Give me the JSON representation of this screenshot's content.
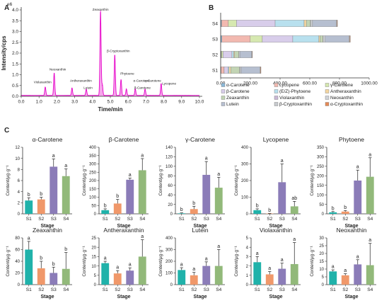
{
  "panels": {
    "a": "A",
    "b": "B",
    "c": "C"
  },
  "chart_data": [
    {
      "type": "line",
      "panel": "A",
      "xlabel": "Time/min",
      "ylabel": "Intensity/cps",
      "xlim": [
        0.0,
        10.0
      ],
      "ylim": [
        0.0,
        4.0
      ],
      "y_unit": "e6",
      "xticks": [
        "0.0",
        "1.0",
        "2.0",
        "3.0",
        "4.0",
        "5.0",
        "6.0",
        "7.0",
        "8.0",
        "9.0",
        "10.0"
      ],
      "yticks": [
        "0.0",
        "0.5",
        "1.0",
        "1.5",
        "2.0",
        "2.5",
        "3.0",
        "3.5",
        "4.0"
      ],
      "y_exponent_label": "e6",
      "color": "#e600c8",
      "peaks": [
        {
          "x": 1.35,
          "y": 0.4,
          "label": "Violaxanthin"
        },
        {
          "x": 1.85,
          "y": 1.05,
          "label": "Neoxanthin"
        },
        {
          "x": 2.85,
          "y": 0.35,
          "label": "Antheraxanthin"
        },
        {
          "x": 3.65,
          "y": 0.3,
          "label": "Lutein"
        },
        {
          "x": 4.45,
          "y": 3.95,
          "label": "Zeaxanthin"
        },
        {
          "x": 4.55,
          "y": 0.5,
          "label": ""
        },
        {
          "x": 5.25,
          "y": 1.9,
          "label": "β-Cryptoxanthin"
        },
        {
          "x": 5.6,
          "y": 0.75,
          "label": "Phytoene"
        },
        {
          "x": 5.9,
          "y": 0.3,
          "label": "α-Carotene"
        },
        {
          "x": 6.4,
          "y": 0.3,
          "label": "β-Carotene"
        },
        {
          "x": 6.95,
          "y": 0.3,
          "label": "γ-Carotene"
        },
        {
          "x": 7.85,
          "y": 0.55,
          "label": "Lycopene"
        }
      ],
      "peak_labels": [
        {
          "text": "Violaxanthin",
          "x": 1.2,
          "y": 0.55
        },
        {
          "text": "Neoxanthin",
          "x": 2.05,
          "y": 1.15
        },
        {
          "text": "Antheraxanthin",
          "x": 3.35,
          "y": 0.62
        },
        {
          "text": "Lutein",
          "x": 3.75,
          "y": 0.3
        },
        {
          "text": "Zeaxanthin",
          "x": 4.45,
          "y": 3.92
        },
        {
          "text": "β-Cryptoxanthin",
          "x": 5.45,
          "y": 2.0
        },
        {
          "text": "Phytoene",
          "x": 5.95,
          "y": 0.95
        },
        {
          "text": "α-Carotene",
          "x": 6.75,
          "y": 0.62
        },
        {
          "text": "β-Carotene",
          "x": 6.8,
          "y": 0.3
        },
        {
          "text": "γ-Carotene",
          "x": 7.4,
          "y": 0.62
        },
        {
          "text": "Lycopene",
          "x": 8.3,
          "y": 0.5
        }
      ]
    },
    {
      "type": "bar",
      "panel": "B",
      "orientation": "horizontal",
      "stacked": true,
      "categories": [
        "S1",
        "S2",
        "S3",
        "S4"
      ],
      "xlim": [
        0,
        1000
      ],
      "xticks": [
        "0.00",
        "200.00",
        "400.00",
        "600.00",
        "800.00",
        "1000.00"
      ],
      "series": [
        {
          "name": "α-Carotene",
          "color": "#8ab8d8",
          "values": [
            2.5,
            4.0,
            8.5,
            6.8
          ]
        },
        {
          "name": "Lycopene",
          "color": "#f2b9b0",
          "values": [
            20,
            2,
            190,
            45
          ]
        },
        {
          "name": "γ-Carotene",
          "color": "#d6e8b0",
          "values": [
            1,
            10,
            82,
            55
          ]
        },
        {
          "name": "β-Carotene",
          "color": "#d8cdea",
          "values": [
            25,
            60,
            205,
            260
          ]
        },
        {
          "name": "(E/Z)-Phytoene",
          "color": "#b8e0ee",
          "values": [
            8,
            12,
            175,
            195
          ]
        },
        {
          "name": "Antheraxanthin",
          "color": "#f4d6a0",
          "values": [
            11,
            6,
            8,
            15
          ]
        },
        {
          "name": "Zeaxanthin",
          "color": "#c2d4b4",
          "values": [
            60,
            28,
            20,
            27
          ]
        },
        {
          "name": "Violaxanthin",
          "color": "#c9b8d4",
          "values": [
            2.4,
            1.1,
            1.7,
            2.2
          ]
        },
        {
          "name": "Neoxanthin",
          "color": "#cfd3d8",
          "values": [
            8.5,
            6,
            13,
            12.5
          ]
        },
        {
          "name": "Lutein",
          "color": "#b6bfd0",
          "values": [
            125,
            80,
            160,
            160
          ]
        },
        {
          "name": "β-Cryptoxanthin",
          "color": "#c7cace",
          "values": [
            5,
            3,
            6,
            5
          ]
        },
        {
          "name": "α-Cryptoxanthin",
          "color": "#e58a57",
          "values": [
            3,
            2,
            4,
            3
          ]
        }
      ]
    },
    {
      "type": "bar",
      "panel": "C",
      "title": "α-Carotene",
      "xlabel": "Stage",
      "ylabel": "Content/μg·g⁻¹",
      "categories": [
        "S1",
        "S2",
        "S3",
        "S4"
      ],
      "values": [
        2.4,
        2.6,
        8.5,
        6.8
      ],
      "errors": [
        0.5,
        0.4,
        1.4,
        1.3
      ],
      "letters": [
        "b",
        "b",
        "a",
        "a"
      ],
      "ylim": [
        0,
        12
      ],
      "yticks": [
        "0",
        "2",
        "4",
        "6",
        "8",
        "10",
        "12"
      ],
      "colors": [
        "#20b2aa",
        "#f0986a",
        "#8b7cb8",
        "#92b97a"
      ]
    },
    {
      "type": "bar",
      "panel": "C",
      "title": "β-Carotene",
      "xlabel": "Stage",
      "ylabel": "Content/μg·g⁻¹",
      "categories": [
        "S1",
        "S2",
        "S3",
        "S4"
      ],
      "values": [
        22,
        62,
        205,
        262
      ],
      "errors": [
        8,
        25,
        10,
        70
      ],
      "letters": [
        "b",
        "b",
        "a",
        "a"
      ],
      "ylim": [
        0,
        400
      ],
      "yticks": [
        "0",
        "50",
        "100",
        "150",
        "200",
        "250",
        "300",
        "350",
        "400"
      ],
      "colors": [
        "#20b2aa",
        "#f0986a",
        "#8b7cb8",
        "#92b97a"
      ]
    },
    {
      "type": "bar",
      "panel": "C",
      "title": "γ-Carotene",
      "xlabel": "Stage",
      "ylabel": "Content/μg·g⁻¹",
      "categories": [
        "S1",
        "S2",
        "S3",
        "S4"
      ],
      "values": [
        1,
        10,
        82,
        55
      ],
      "errors": [
        1,
        6,
        28,
        22
      ],
      "letters": [
        "b",
        "b",
        "a",
        "a"
      ],
      "ylim": [
        0,
        140
      ],
      "yticks": [
        "0",
        "20",
        "40",
        "60",
        "80",
        "100",
        "120",
        "140"
      ],
      "colors": [
        "#20b2aa",
        "#f0986a",
        "#8b7cb8",
        "#92b97a"
      ]
    },
    {
      "type": "bar",
      "panel": "C",
      "title": "Lycopene",
      "xlabel": "Stage",
      "ylabel": "Content/μg·g⁻¹",
      "categories": [
        "S1",
        "S2",
        "S3",
        "S4"
      ],
      "values": [
        22,
        2,
        190,
        45
      ],
      "errors": [
        8,
        1,
        110,
        30
      ],
      "letters": [
        "b",
        "b",
        "a",
        "ab"
      ],
      "ylim": [
        0,
        400
      ],
      "yticks": [
        "0",
        "100",
        "200",
        "300",
        "400"
      ],
      "colors": [
        "#20b2aa",
        "#f0986a",
        "#8b7cb8",
        "#92b97a"
      ]
    },
    {
      "type": "bar",
      "panel": "C",
      "title": "Phytoene",
      "xlabel": "Stage",
      "ylabel": "Content/μg·g⁻¹",
      "categories": [
        "S1",
        "S2",
        "S3",
        "S4"
      ],
      "values": [
        8,
        12,
        175,
        195
      ],
      "errors": [
        4,
        5,
        55,
        100
      ],
      "letters": [
        "b",
        "b",
        "a",
        "a"
      ],
      "ylim": [
        0,
        350
      ],
      "yticks": [
        "0",
        "50",
        "100",
        "150",
        "200",
        "250",
        "300",
        "350"
      ],
      "colors": [
        "#20b2aa",
        "#f0986a",
        "#8b7cb8",
        "#92b97a"
      ]
    },
    {
      "type": "bar",
      "panel": "C",
      "title": "Zeaxanthin",
      "xlabel": "Stage",
      "ylabel": "Content/μg·g⁻¹",
      "categories": [
        "S1",
        "S2",
        "S3",
        "S4"
      ],
      "values": [
        60,
        28,
        20,
        27
      ],
      "errors": [
        14,
        12,
        10,
        28
      ],
      "letters": [
        "a",
        "b",
        "b",
        "b"
      ],
      "ylim": [
        0,
        80
      ],
      "yticks": [
        "0",
        "20",
        "40",
        "60",
        "80"
      ],
      "colors": [
        "#20b2aa",
        "#f0986a",
        "#8b7cb8",
        "#92b97a"
      ]
    },
    {
      "type": "bar",
      "panel": "C",
      "title": "Antheraxanthin",
      "xlabel": "Stage",
      "ylabel": "Content/μg·g⁻¹",
      "categories": [
        "S1",
        "S2",
        "S3",
        "S4"
      ],
      "values": [
        11.5,
        6,
        7.5,
        15
      ],
      "errors": [
        1,
        1.5,
        1.5,
        9
      ],
      "letters": [
        "a",
        "a",
        "a",
        "a"
      ],
      "ylim": [
        0,
        25
      ],
      "yticks": [
        "0",
        "5",
        "10",
        "15",
        "20",
        "25"
      ],
      "colors": [
        "#20b2aa",
        "#f0986a",
        "#8b7cb8",
        "#92b97a"
      ]
    },
    {
      "type": "bar",
      "panel": "C",
      "title": "Lutein",
      "xlabel": "Stage",
      "ylabel": "Content/μg·g⁻¹",
      "categories": [
        "S1",
        "S2",
        "S3",
        "S4"
      ],
      "values": [
        125,
        80,
        160,
        160
      ],
      "errors": [
        20,
        25,
        35,
        140
      ],
      "letters": [
        "a",
        "a",
        "a",
        "a"
      ],
      "ylim": [
        0,
        400
      ],
      "yticks": [
        "0",
        "100",
        "200",
        "300",
        "400"
      ],
      "colors": [
        "#20b2aa",
        "#f0986a",
        "#8b7cb8",
        "#92b97a"
      ]
    },
    {
      "type": "bar",
      "panel": "C",
      "title": "Violaxanthin",
      "xlabel": "Stage",
      "ylabel": "Content/μg·g⁻¹",
      "categories": [
        "S1",
        "S2",
        "S3",
        "S4"
      ],
      "values": [
        2.4,
        1.1,
        1.7,
        2.2
      ],
      "errors": [
        0.6,
        0.3,
        0.6,
        2.3
      ],
      "letters": [
        "a",
        "a",
        "a",
        "a"
      ],
      "ylim": [
        0,
        5
      ],
      "yticks": [
        "0",
        "1",
        "2",
        "3",
        "4",
        "5"
      ],
      "colors": [
        "#20b2aa",
        "#f0986a",
        "#8b7cb8",
        "#92b97a"
      ]
    },
    {
      "type": "bar",
      "panel": "C",
      "title": "Neoxanthin",
      "xlabel": "Stage",
      "ylabel": "Content/μg·g⁻¹",
      "categories": [
        "S1",
        "S2",
        "S3",
        "S4"
      ],
      "values": [
        8.5,
        6,
        13,
        12.5
      ],
      "errors": [
        1,
        1,
        3,
        14
      ],
      "letters": [
        "a",
        "a",
        "a",
        "a"
      ],
      "ylim": [
        0,
        30
      ],
      "yticks": [
        "0",
        "5",
        "10",
        "15",
        "20",
        "25",
        "30"
      ],
      "colors": [
        "#20b2aa",
        "#f0986a",
        "#8b7cb8",
        "#92b97a"
      ]
    }
  ]
}
